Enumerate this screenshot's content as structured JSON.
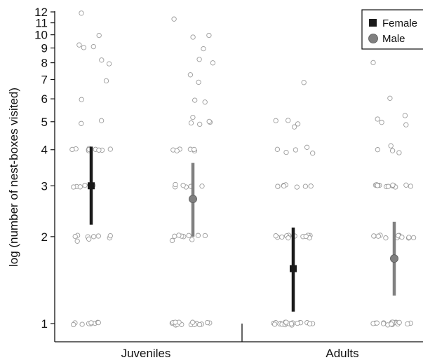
{
  "chart_data": {
    "type": "scatter",
    "title": "",
    "ylabel": "log (number of nest-boxes visited)",
    "xlabel": "",
    "y_scale": "log",
    "ylim": [
      0.93,
      12.3
    ],
    "y_ticks": [
      1,
      2,
      3,
      4,
      5,
      6,
      7,
      8,
      9,
      10,
      11,
      12
    ],
    "groups": [
      "Juveniles",
      "Adults"
    ],
    "legend": {
      "placement": "top-right",
      "entries": [
        {
          "label": "Female",
          "marker": "square",
          "color": "#1a1a1a"
        },
        {
          "label": "Male",
          "marker": "circle",
          "color": "#808080"
        }
      ]
    },
    "series": [
      {
        "group": "Juveniles",
        "sex": "Female",
        "color": "#1a1a1a",
        "marker": "square",
        "mean": 3.0,
        "ci_low": 2.2,
        "ci_high": 4.1,
        "points": [
          1,
          1,
          1,
          1,
          1,
          1,
          1,
          1,
          1,
          2,
          2,
          2,
          2,
          2,
          2,
          2,
          1.95,
          1.95,
          3,
          3,
          3,
          3,
          3,
          3,
          4,
          4,
          4,
          4,
          4,
          4,
          4,
          4,
          4,
          4,
          4.9,
          5,
          6,
          7,
          8,
          8.2,
          9,
          9,
          9.2,
          10,
          12
        ]
      },
      {
        "group": "Juveniles",
        "sex": "Male",
        "color": "#808080",
        "marker": "circle",
        "mean": 2.7,
        "ci_low": 2.0,
        "ci_high": 3.6,
        "points": [
          1,
          1,
          1,
          1,
          1,
          1,
          1,
          1,
          1,
          1,
          1,
          1,
          1,
          1,
          1,
          1,
          2,
          2,
          2,
          2,
          2,
          2,
          2,
          1.95,
          1.95,
          3,
          3,
          3,
          3,
          3,
          3,
          4,
          4,
          4,
          4,
          4,
          4,
          4.9,
          5,
          5,
          5,
          5.2,
          5.9,
          6,
          6.9,
          7.2,
          8,
          8.2,
          9,
          9.8,
          10,
          11.3
        ]
      },
      {
        "group": "Adults",
        "sex": "Female",
        "color": "#1a1a1a",
        "marker": "square",
        "mean": 1.55,
        "ci_low": 1.1,
        "ci_high": 2.15,
        "points": [
          1,
          1,
          1,
          1,
          1,
          1,
          1,
          1,
          1,
          1,
          1,
          1,
          1,
          1,
          1,
          1,
          1,
          1,
          1,
          1,
          2,
          2,
          2,
          2,
          2,
          2,
          2,
          2,
          2,
          2,
          2,
          2,
          2,
          3,
          3,
          3,
          3,
          3,
          3,
          3,
          3,
          3.9,
          3.9,
          4,
          4,
          4.1,
          4.8,
          4.9,
          5,
          5.1,
          6.9
        ]
      },
      {
        "group": "Adults",
        "sex": "Male",
        "color": "#808080",
        "marker": "circle",
        "mean": 1.68,
        "ci_low": 1.25,
        "ci_high": 2.25,
        "points": [
          1,
          1,
          1,
          1,
          1,
          1,
          1,
          1,
          1,
          1,
          1,
          1,
          1,
          1,
          1,
          1,
          1,
          1,
          1,
          2,
          2,
          2,
          2,
          2,
          2,
          2,
          2,
          2,
          2,
          2,
          2,
          2,
          3,
          3,
          3,
          3,
          3,
          3,
          3,
          3,
          3,
          3,
          3,
          3,
          3,
          3,
          3.9,
          4,
          4,
          4.1,
          4.9,
          5,
          5.1,
          5.2,
          6,
          8
        ]
      }
    ]
  }
}
